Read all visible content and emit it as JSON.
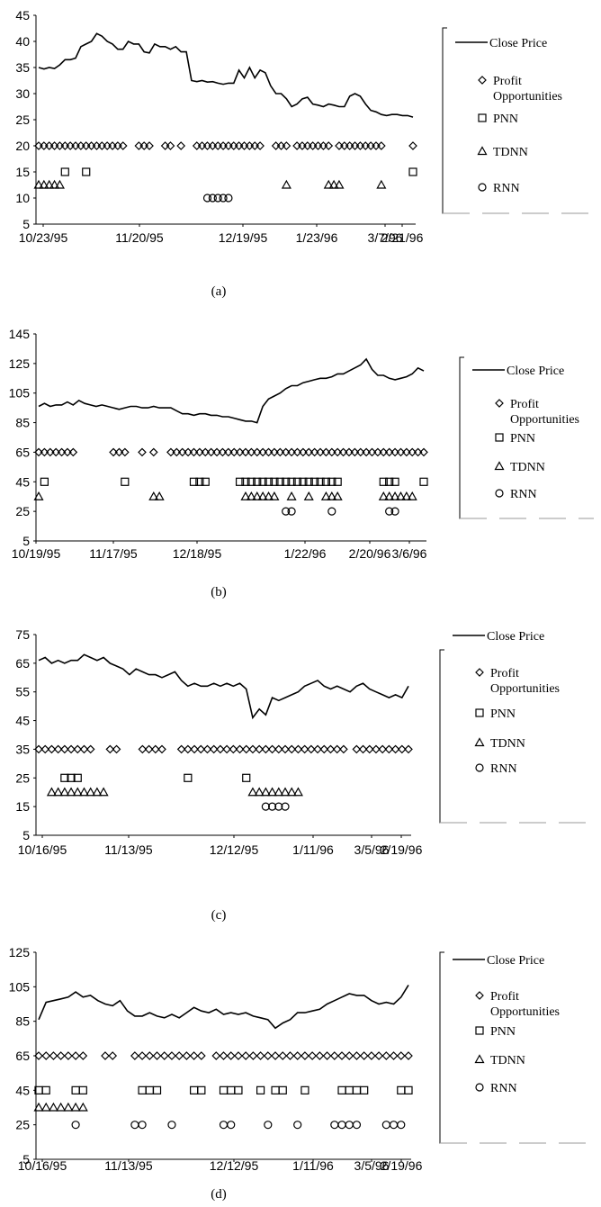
{
  "chart_data": [
    {
      "type": "line",
      "caption": "(a)",
      "ylim": [
        5,
        45
      ],
      "yticks": [
        5,
        10,
        15,
        20,
        25,
        30,
        35,
        40,
        45
      ],
      "xlabels": [
        "10/23/95",
        "11/20/95",
        "12/19/95",
        "1/23/96",
        "2/21/96",
        "3/7/96"
      ],
      "grid": false,
      "legend_position": "right",
      "legend": [
        "Close Price",
        "Profit Opportunities",
        "PNN",
        "TDNN",
        "RNN"
      ],
      "close_price": [
        35,
        34.7,
        35,
        34.8,
        35.5,
        36.5,
        36.5,
        36.8,
        39,
        39.5,
        40,
        41.5,
        41,
        40,
        39.5,
        38.5,
        38.5,
        40,
        39.5,
        39.5,
        38,
        37.8,
        39.5,
        39,
        39,
        38.5,
        39,
        38,
        38,
        32.5,
        32.3,
        32.5,
        32.2,
        32.3,
        32,
        31.8,
        32,
        32,
        34.5,
        33,
        35,
        33,
        34.5,
        34,
        31.5,
        30,
        30,
        29,
        27.5,
        28,
        29,
        29.3,
        28,
        27.8,
        27.5,
        28,
        27.8,
        27.5,
        27.5,
        29.5,
        30,
        29.5,
        28,
        26.8,
        26.5,
        26,
        25.8,
        26,
        26,
        25.8,
        25.8,
        25.5
      ],
      "series": [
        {
          "name": "Profit Opportunities",
          "level": 20,
          "x": [
            0,
            1,
            2,
            3,
            4,
            5,
            6,
            7,
            8,
            9,
            10,
            11,
            12,
            13,
            14,
            15,
            16,
            19,
            20,
            21,
            24,
            25,
            27,
            30,
            31,
            32,
            33,
            34,
            35,
            36,
            37,
            38,
            39,
            40,
            41,
            42,
            45,
            46,
            47,
            49,
            50,
            51,
            52,
            53,
            54,
            55,
            57,
            58,
            59,
            60,
            61,
            62,
            63,
            64,
            65,
            71
          ]
        },
        {
          "name": "PNN",
          "level": 15,
          "x": [
            5,
            9,
            71
          ]
        },
        {
          "name": "TDNN",
          "level": 12.5,
          "x": [
            0,
            1,
            2,
            3,
            4,
            47,
            55,
            56,
            57,
            65
          ]
        },
        {
          "name": "RNN",
          "level": 10,
          "x": [
            32,
            33,
            34,
            35,
            36
          ]
        }
      ]
    },
    {
      "type": "line",
      "caption": "(b)",
      "ylim": [
        5,
        145
      ],
      "yticks": [
        5,
        25,
        45,
        65,
        85,
        105,
        125,
        145
      ],
      "xlabels": [
        "10/19/95",
        "11/17/95",
        "12/18/95",
        "1/22/96",
        "2/20/96",
        "3/6/96"
      ],
      "grid": false,
      "legend_position": "right",
      "legend": [
        "Close Price",
        "Profit Opportunities",
        "PNN",
        "TDNN",
        "RNN"
      ],
      "close_price": [
        96,
        98,
        96,
        97,
        97,
        99,
        97,
        100,
        98,
        97,
        96,
        97,
        96,
        95,
        94,
        95,
        96,
        96,
        95,
        95,
        96,
        95,
        95,
        95,
        93,
        91,
        91,
        90,
        91,
        91,
        90,
        90,
        89,
        89,
        88,
        87,
        86,
        86,
        85,
        96,
        101,
        103,
        105,
        108,
        110,
        110,
        112,
        113,
        114,
        115,
        115,
        116,
        118,
        118,
        120,
        122,
        124,
        128,
        121,
        117,
        117,
        115,
        114,
        115,
        116,
        118,
        122,
        120
      ],
      "series": [
        {
          "name": "Profit Opportunities",
          "level": 65,
          "x": [
            0,
            1,
            2,
            3,
            4,
            5,
            6,
            13,
            14,
            15,
            18,
            20,
            23,
            24,
            25,
            26,
            27,
            28,
            29,
            30,
            31,
            32,
            33,
            34,
            35,
            36,
            37,
            38,
            39,
            40,
            41,
            42,
            43,
            44,
            45,
            46,
            47,
            48,
            49,
            50,
            51,
            52,
            53,
            54,
            55,
            56,
            57,
            58,
            59,
            60,
            61,
            62,
            63,
            64,
            65,
            66,
            67
          ]
        },
        {
          "name": "PNN",
          "level": 45,
          "x": [
            1,
            15,
            27,
            28,
            29,
            35,
            36,
            37,
            38,
            39,
            40,
            41,
            42,
            43,
            44,
            45,
            46,
            47,
            48,
            49,
            50,
            51,
            52,
            60,
            61,
            62,
            67
          ]
        },
        {
          "name": "TDNN",
          "level": 35,
          "x": [
            0,
            20,
            21,
            36,
            37,
            38,
            39,
            40,
            41,
            44,
            47,
            50,
            51,
            52,
            60,
            61,
            62,
            63,
            64,
            65
          ]
        },
        {
          "name": "RNN",
          "level": 25,
          "x": [
            43,
            44,
            51,
            61,
            62
          ]
        }
      ]
    },
    {
      "type": "line",
      "caption": "(c)",
      "ylim": [
        5,
        75
      ],
      "yticks": [
        5,
        15,
        25,
        35,
        45,
        55,
        65,
        75
      ],
      "xlabels": [
        "10/16/95",
        "11/13/95",
        "12/12/95",
        "1/11/96",
        "2/19/96",
        "3/5/96"
      ],
      "grid": false,
      "legend_position": "right",
      "legend": [
        "Close Price",
        "Profit Opportunities",
        "PNN",
        "TDNN",
        "RNN"
      ],
      "close_price": [
        66,
        67,
        65,
        66,
        65,
        66,
        66,
        68,
        67,
        66,
        67,
        65,
        64,
        63,
        61,
        63,
        62,
        61,
        61,
        60,
        61,
        62,
        59,
        57,
        58,
        57,
        57,
        58,
        57,
        58,
        57,
        58,
        56,
        46,
        49,
        47,
        53,
        52,
        53,
        54,
        55,
        57,
        58,
        59,
        57,
        56,
        57,
        56,
        55,
        57,
        58,
        56,
        55,
        54,
        53,
        54,
        53,
        57
      ],
      "series": [
        {
          "name": "Profit Opportunities",
          "level": 35,
          "x": [
            0,
            1,
            2,
            3,
            4,
            5,
            6,
            7,
            8,
            11,
            12,
            16,
            17,
            18,
            19,
            22,
            23,
            24,
            25,
            26,
            27,
            28,
            29,
            30,
            31,
            32,
            33,
            34,
            35,
            36,
            37,
            38,
            39,
            40,
            41,
            42,
            43,
            44,
            45,
            46,
            47,
            49,
            50,
            51,
            52,
            53,
            54,
            55,
            56,
            57
          ]
        },
        {
          "name": "PNN",
          "level": 25,
          "x": [
            4,
            5,
            6,
            23,
            32
          ]
        },
        {
          "name": "TDNN",
          "level": 20,
          "x": [
            2,
            3,
            4,
            5,
            6,
            7,
            8,
            9,
            10,
            33,
            34,
            35,
            36,
            37,
            38,
            39,
            40
          ]
        },
        {
          "name": "RNN",
          "level": 15,
          "x": [
            35,
            36,
            37,
            38
          ]
        }
      ]
    },
    {
      "type": "line",
      "caption": "(d)",
      "ylim": [
        5,
        125
      ],
      "yticks": [
        5,
        25,
        45,
        65,
        85,
        105,
        125
      ],
      "xlabels": [
        "10/16/95",
        "11/13/95",
        "12/12/95",
        "1/11/96",
        "2/19/96",
        "3/5/96"
      ],
      "grid": false,
      "legend_position": "right",
      "legend": [
        "Close Price",
        "Profit Opportunities",
        "PNN",
        "TDNN",
        "RNN"
      ],
      "close_price": [
        86,
        96,
        97,
        98,
        99,
        102,
        99,
        100,
        97,
        95,
        94,
        97,
        91,
        88,
        88,
        90,
        88,
        87,
        89,
        87,
        90,
        93,
        91,
        90,
        92,
        89,
        90,
        89,
        90,
        88,
        87,
        86,
        81,
        84,
        86,
        90,
        90,
        91,
        92,
        95,
        97,
        99,
        101,
        100,
        100,
        97,
        95,
        96,
        95,
        99,
        106
      ],
      "series": [
        {
          "name": "Profit Opportunities",
          "level": 65,
          "x": [
            0,
            1,
            2,
            3,
            4,
            5,
            6,
            9,
            10,
            13,
            14,
            15,
            16,
            17,
            18,
            19,
            20,
            21,
            22,
            24,
            25,
            26,
            27,
            28,
            29,
            30,
            31,
            32,
            33,
            34,
            35,
            36,
            37,
            38,
            39,
            40,
            41,
            42,
            43,
            44,
            45,
            46,
            47,
            48,
            49,
            50
          ]
        },
        {
          "name": "PNN",
          "level": 45,
          "x": [
            0,
            1,
            5,
            6,
            14,
            15,
            16,
            21,
            22,
            25,
            26,
            27,
            30,
            32,
            33,
            36,
            41,
            42,
            43,
            44,
            49,
            50
          ]
        },
        {
          "name": "TDNN",
          "level": 35,
          "x": [
            0,
            1,
            2,
            3,
            4,
            5,
            6
          ]
        },
        {
          "name": "RNN",
          "level": 25,
          "x": [
            5,
            13,
            14,
            18,
            25,
            26,
            31,
            35,
            40,
            41,
            42,
            43,
            47,
            48,
            49
          ]
        }
      ]
    }
  ]
}
